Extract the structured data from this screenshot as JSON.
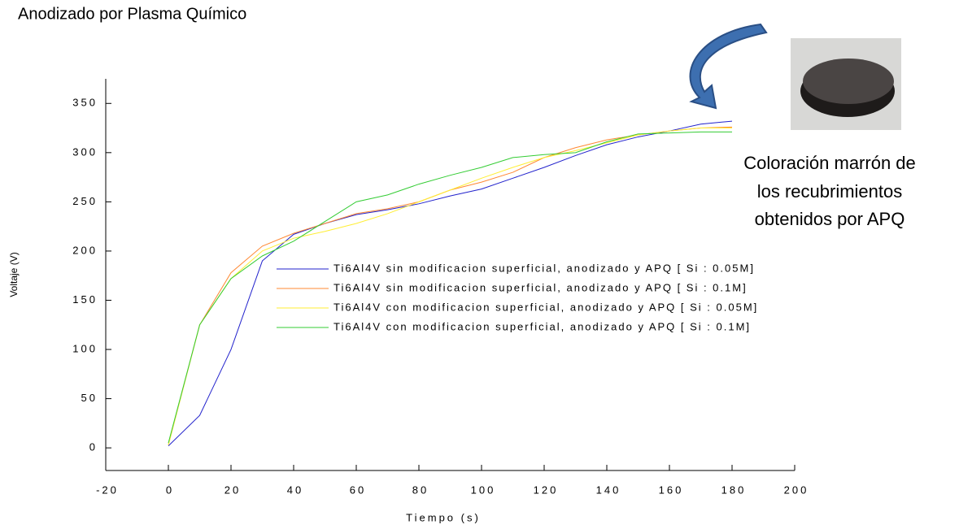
{
  "chart_data": {
    "type": "line",
    "title": "Anodizado por Plasma Químico",
    "annotation": [
      "Coloración marrón  de",
      "los recubrimientos",
      "obtenidos por APQ"
    ],
    "x_label": "Tiempo  (s)",
    "y_label": "Voltaje  (V)",
    "x": [
      0,
      10,
      20,
      30,
      40,
      50,
      60,
      70,
      80,
      90,
      100,
      110,
      120,
      130,
      140,
      150,
      160,
      170,
      180
    ],
    "series": [
      {
        "name": "Ti6Al4V sin modificacion superficial, anodizado y APQ [ Si : 0.05M]",
        "color": "#2222cc",
        "values": [
          2,
          33,
          100,
          190,
          217,
          228,
          237,
          242,
          248,
          256,
          263,
          274,
          285,
          297,
          308,
          316,
          322,
          329,
          332
        ]
      },
      {
        "name": "Ti6Al4V sin modificacion superficial, anodizado y APQ [ Si : 0.1M]",
        "color": "#ff8833",
        "values": [
          3,
          125,
          178,
          205,
          218,
          228,
          238,
          243,
          250,
          262,
          270,
          280,
          295,
          305,
          313,
          318,
          322,
          325,
          326
        ]
      },
      {
        "name": "Ti6Al4V con modificacion superficial, anodizado y APQ [ Si : 0.05M]",
        "color": "#ffee33",
        "values": [
          3,
          125,
          172,
          200,
          213,
          220,
          228,
          238,
          250,
          262,
          274,
          285,
          295,
          302,
          310,
          318,
          322,
          325,
          325
        ]
      },
      {
        "name": "Ti6Al4V con modificacion superficial, anodizado y APQ [ Si : 0.1M]",
        "color": "#33cc33",
        "values": [
          5,
          125,
          172,
          195,
          210,
          230,
          250,
          257,
          268,
          277,
          285,
          295,
          298,
          300,
          311,
          319,
          320,
          321,
          321
        ]
      }
    ],
    "xlim": [
      -20,
      200
    ],
    "xticks": [
      -20,
      0,
      20,
      40,
      60,
      80,
      100,
      120,
      140,
      160,
      180,
      200
    ],
    "ylim": [
      -23,
      375
    ],
    "yticks": [
      0,
      50,
      100,
      150,
      200,
      250,
      300,
      350
    ]
  }
}
